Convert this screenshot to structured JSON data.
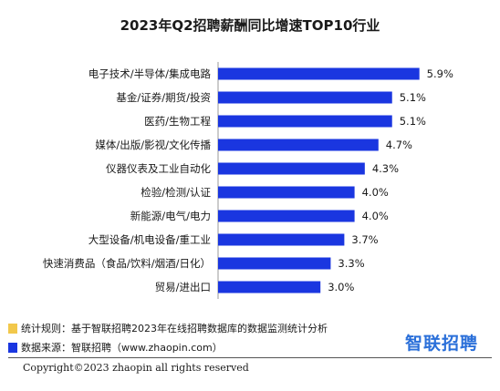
{
  "chart_data": {
    "type": "bar",
    "orientation": "horizontal",
    "title": "2023年Q2招聘薪酬同比增速TOP10行业",
    "categories": [
      "电子技术/半导体/集成电路",
      "基金/证券/期货/投资",
      "医药/生物工程",
      "媒体/出版/影视/文化传播",
      "仪器仪表及工业自动化",
      "检验/检测/认证",
      "新能源/电气/电力",
      "大型设备/机电设备/重工业",
      "快速消费品（食品/饮料/烟酒/日化）",
      "贸易/进出口"
    ],
    "values": [
      5.9,
      5.1,
      5.1,
      4.7,
      4.3,
      4.0,
      4.0,
      3.7,
      3.3,
      3.0
    ],
    "value_labels": [
      "5.9%",
      "5.1%",
      "5.1%",
      "4.7%",
      "4.3%",
      "4.0%",
      "4.0%",
      "3.7%",
      "3.3%",
      "3.0%"
    ],
    "bar_color": "#1a36e0",
    "grid": false,
    "xlabel": "",
    "ylabel": ""
  },
  "footnotes": {
    "rule_label": "统计规则：",
    "rule_text": "基于智联招聘2023年在线招聘数据库的数据监测统计分析",
    "rule_icon_color": "#f2c84b",
    "source_label": "数据来源：",
    "source_text": "智联招聘（www.zhaopin.com）",
    "source_icon_color": "#1a36e0"
  },
  "logo_text": "智联招聘",
  "logo_color": "#2a6fd9",
  "copyright": "Copyright©2023 zhaopin all rights reserved"
}
